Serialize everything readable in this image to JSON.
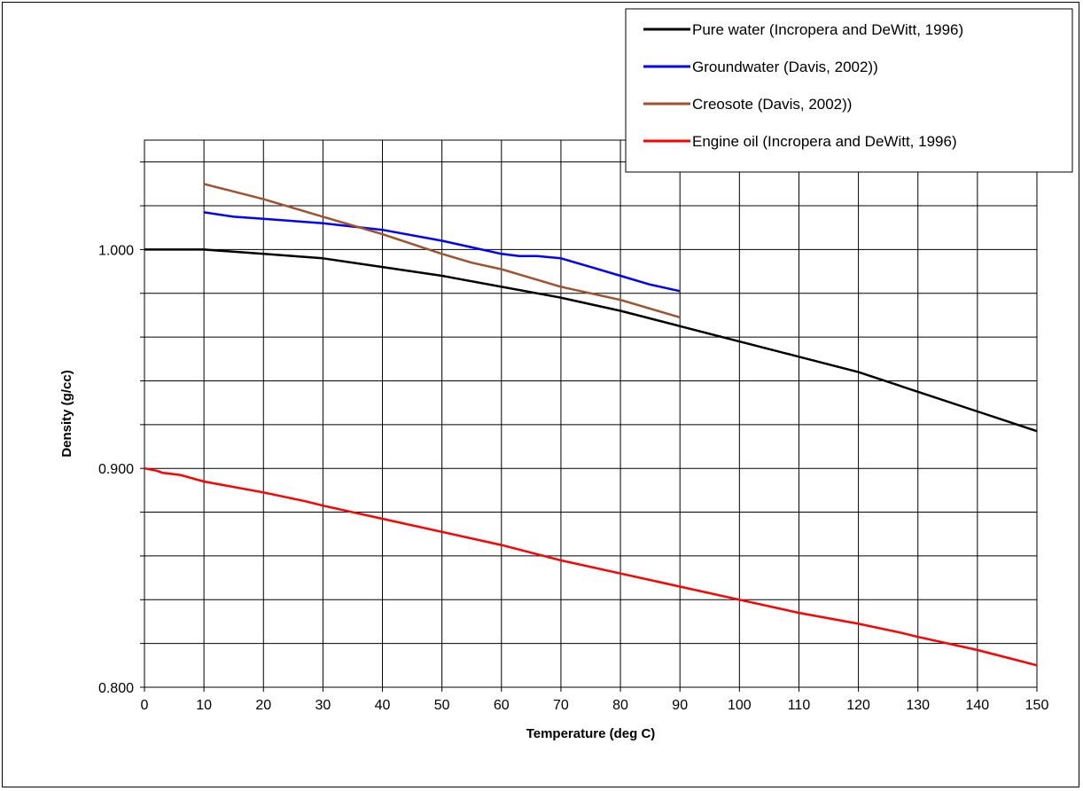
{
  "chart_data": {
    "type": "line",
    "title": "",
    "xlabel": "Temperature (deg C)",
    "ylabel": "Density (g/cc)",
    "xlim": [
      0,
      150
    ],
    "ylim": [
      0.8,
      1.05
    ],
    "x_ticks": [
      0,
      10,
      20,
      30,
      40,
      50,
      60,
      70,
      80,
      90,
      100,
      110,
      120,
      130,
      140,
      150
    ],
    "y_ticks": [
      0.8,
      0.9,
      1.0
    ],
    "y_tick_labels": [
      "0.800",
      "0.900",
      "1.000"
    ],
    "y_gridlines": [
      0.8,
      0.82,
      0.84,
      0.86,
      0.88,
      0.9,
      0.92,
      0.94,
      0.96,
      0.98,
      1.0,
      1.02,
      1.04
    ],
    "grid": true,
    "legend_position": "top-right",
    "series": [
      {
        "name": "Pure water (Incropera and DeWitt, 1996)",
        "color": "#000000",
        "points": [
          [
            0,
            1.0
          ],
          [
            10,
            1.0
          ],
          [
            20,
            0.998
          ],
          [
            30,
            0.996
          ],
          [
            40,
            0.992
          ],
          [
            50,
            0.988
          ],
          [
            60,
            0.983
          ],
          [
            70,
            0.978
          ],
          [
            80,
            0.972
          ],
          [
            90,
            0.965
          ],
          [
            100,
            0.958
          ],
          [
            110,
            0.951
          ],
          [
            120,
            0.944
          ],
          [
            130,
            0.935
          ],
          [
            140,
            0.926
          ],
          [
            150,
            0.917
          ]
        ]
      },
      {
        "name": "Groundwater (Davis, 2002))",
        "color": "#0000ff",
        "points": [
          [
            10,
            1.017
          ],
          [
            15,
            1.015
          ],
          [
            20,
            1.014
          ],
          [
            25,
            1.013
          ],
          [
            30,
            1.012
          ],
          [
            40,
            1.009
          ],
          [
            50,
            1.004
          ],
          [
            55,
            1.001
          ],
          [
            60,
            0.998
          ],
          [
            63,
            0.997
          ],
          [
            66,
            0.997
          ],
          [
            70,
            0.996
          ],
          [
            75,
            0.992
          ],
          [
            80,
            0.988
          ],
          [
            85,
            0.984
          ],
          [
            90,
            0.981
          ]
        ]
      },
      {
        "name": "Creosote (Davis, 2002))",
        "color": "#a0522d",
        "points": [
          [
            10,
            1.03
          ],
          [
            20,
            1.023
          ],
          [
            30,
            1.015
          ],
          [
            40,
            1.007
          ],
          [
            50,
            0.998
          ],
          [
            55,
            0.994
          ],
          [
            60,
            0.991
          ],
          [
            70,
            0.983
          ],
          [
            80,
            0.977
          ],
          [
            90,
            0.969
          ]
        ]
      },
      {
        "name": "Engine oil (Incropera and DeWitt, 1996)",
        "color": "#ff0000",
        "points": [
          [
            0,
            0.9
          ],
          [
            2,
            0.899
          ],
          [
            3,
            0.898
          ],
          [
            6,
            0.897
          ],
          [
            10,
            0.894
          ],
          [
            20,
            0.889
          ],
          [
            27,
            0.885
          ],
          [
            30,
            0.883
          ],
          [
            40,
            0.877
          ],
          [
            50,
            0.871
          ],
          [
            60,
            0.865
          ],
          [
            70,
            0.858
          ],
          [
            80,
            0.852
          ],
          [
            90,
            0.846
          ],
          [
            100,
            0.84
          ],
          [
            110,
            0.834
          ],
          [
            120,
            0.829
          ],
          [
            127,
            0.825
          ],
          [
            130,
            0.823
          ],
          [
            140,
            0.817
          ],
          [
            150,
            0.81
          ]
        ]
      }
    ]
  }
}
